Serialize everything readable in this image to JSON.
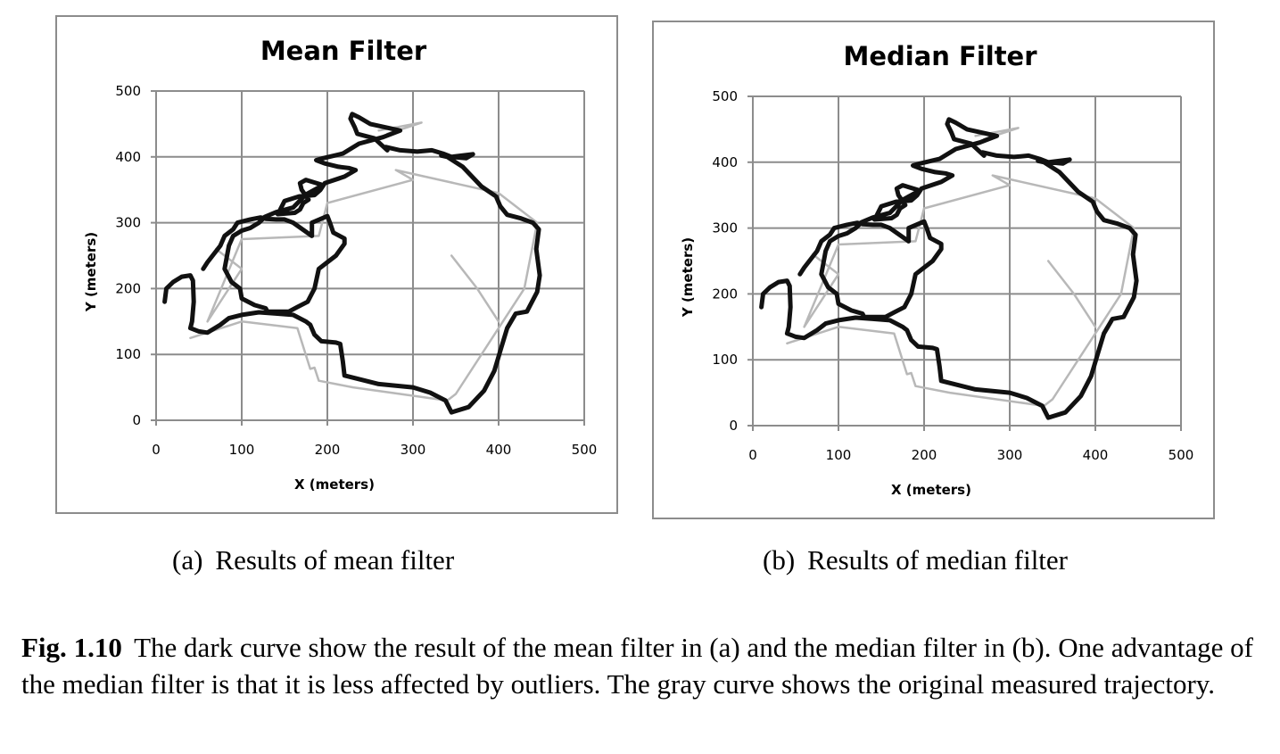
{
  "figure": {
    "label": "Fig. 1.10",
    "caption": "The dark curve show the result of the mean filter in (a) and the median filter in (b). One advantage of the median filter is that it is less affected by outliers. The gray curve shows the original measured trajectory."
  },
  "subfigures": [
    {
      "tag": "(a)",
      "caption": "Results of mean filter"
    },
    {
      "tag": "(b)",
      "caption": "Results of median filter"
    }
  ],
  "colors": {
    "filtered": "#111111",
    "original": "#b8b8b8",
    "grid": "#8c8c8c"
  },
  "chart_data": [
    {
      "type": "line",
      "title": "Mean Filter",
      "xlabel": "X (meters)",
      "ylabel": "Y (meters)",
      "xlim": [
        0,
        500
      ],
      "ylim": [
        0,
        500
      ],
      "xticks": [
        "0",
        "100",
        "200",
        "300",
        "400",
        "500"
      ],
      "yticks": [
        "0",
        "100",
        "200",
        "300",
        "400",
        "500"
      ],
      "grid": true,
      "series": [
        {
          "role": "original",
          "x": [
            70,
            100,
            60,
            100,
            190,
            200,
            300,
            280,
            400,
            445,
            430,
            350,
            340,
            230,
            190,
            185,
            180,
            165,
            100,
            40
          ],
          "y": [
            260,
            230,
            150,
            275,
            280,
            330,
            365,
            380,
            345,
            300,
            200,
            40,
            30,
            50,
            60,
            80,
            78,
            140,
            150,
            125
          ]
        },
        {
          "role": "original",
          "x": [
            345,
            375,
            400
          ],
          "y": [
            250,
            200,
            150
          ]
        },
        {
          "role": "original",
          "x": [
            260,
            310,
            270
          ],
          "y": [
            440,
            452,
            435
          ]
        },
        {
          "role": "filtered",
          "x": [
            10,
            12,
            20,
            30,
            40,
            43,
            44,
            42,
            40,
            50,
            60,
            75,
            85,
            100,
            120,
            140,
            160,
            175,
            180,
            185,
            193,
            210,
            215,
            218,
            220,
            260,
            300,
            320,
            338,
            345,
            365,
            383,
            395,
            403,
            410,
            420,
            433,
            445,
            448,
            444,
            447,
            440,
            425,
            410,
            402,
            397,
            380,
            358,
            340,
            333,
            345,
            370,
            362,
            345,
            335,
            322,
            305,
            285,
            268,
            270,
            255,
            235,
            232,
            227,
            229,
            237,
            250,
            285,
            265,
            237,
            218,
            195,
            187,
            197,
            213,
            225,
            233,
            220,
            197,
            192,
            185,
            167,
            150,
            145,
            142,
            162,
            168,
            172,
            178,
            170,
            168,
            175,
            195,
            175,
            160,
            140,
            127,
            125,
            120,
            110,
            100,
            90,
            85,
            80,
            88,
            98,
            100,
            115,
            128,
            130,
            155,
            165,
            177,
            185,
            190,
            200,
            210,
            220,
            220,
            220,
            207,
            203,
            200,
            182,
            182,
            160,
            150,
            140,
            128,
            122,
            110,
            95,
            90,
            80,
            75,
            60,
            55
          ],
          "y": [
            180,
            200,
            210,
            218,
            220,
            212,
            180,
            150,
            140,
            135,
            133,
            145,
            155,
            160,
            164,
            162,
            160,
            150,
            145,
            130,
            120,
            118,
            116,
            90,
            68,
            55,
            50,
            42,
            30,
            12,
            20,
            45,
            75,
            110,
            140,
            162,
            165,
            195,
            220,
            260,
            290,
            300,
            307,
            312,
            325,
            340,
            355,
            385,
            400,
            402,
            400,
            404,
            398,
            400,
            405,
            410,
            408,
            410,
            415,
            410,
            428,
            435,
            445,
            458,
            465,
            460,
            450,
            440,
            430,
            420,
            405,
            398,
            395,
            390,
            385,
            383,
            380,
            370,
            360,
            350,
            342,
            340,
            333,
            320,
            313,
            315,
            320,
            330,
            335,
            350,
            360,
            365,
            357,
            343,
            323,
            316,
            309,
            306,
            300,
            292,
            288,
            280,
            265,
            230,
            210,
            200,
            185,
            175,
            170,
            165,
            165,
            172,
            180,
            200,
            230,
            240,
            250,
            268,
            273,
            276,
            285,
            300,
            310,
            300,
            280,
            300,
            305,
            305,
            306,
            308,
            305,
            300,
            290,
            280,
            265,
            240,
            230
          ]
        }
      ]
    },
    {
      "type": "line",
      "title": "Median Filter",
      "xlabel": "X (meters)",
      "ylabel": "Y (meters)",
      "xlim": [
        0,
        500
      ],
      "ylim": [
        0,
        500
      ],
      "xticks": [
        "0",
        "100",
        "200",
        "300",
        "400",
        "500"
      ],
      "yticks": [
        "0",
        "100",
        "200",
        "300",
        "400",
        "500"
      ],
      "grid": true,
      "series": [
        {
          "role": "original",
          "x": [
            70,
            100,
            60,
            100,
            190,
            200,
            300,
            280,
            400,
            445,
            430,
            350,
            340,
            230,
            190,
            185,
            180,
            165,
            100,
            40
          ],
          "y": [
            260,
            230,
            150,
            275,
            280,
            330,
            365,
            380,
            345,
            300,
            200,
            40,
            30,
            50,
            60,
            80,
            78,
            140,
            150,
            125
          ]
        },
        {
          "role": "original",
          "x": [
            345,
            375,
            400
          ],
          "y": [
            250,
            200,
            150
          ]
        },
        {
          "role": "original",
          "x": [
            260,
            310,
            270
          ],
          "y": [
            440,
            452,
            435
          ]
        },
        {
          "role": "filtered",
          "x": [
            10,
            12,
            20,
            30,
            40,
            43,
            44,
            42,
            40,
            50,
            60,
            75,
            85,
            100,
            120,
            140,
            160,
            175,
            180,
            185,
            193,
            210,
            215,
            218,
            220,
            260,
            300,
            320,
            338,
            345,
            365,
            383,
            395,
            403,
            410,
            420,
            433,
            445,
            448,
            444,
            447,
            440,
            425,
            410,
            402,
            397,
            380,
            358,
            340,
            333,
            345,
            370,
            362,
            345,
            335,
            322,
            305,
            285,
            268,
            270,
            255,
            235,
            232,
            227,
            229,
            237,
            250,
            285,
            265,
            237,
            218,
            195,
            187,
            197,
            213,
            225,
            233,
            220,
            197,
            192,
            185,
            167,
            150,
            145,
            142,
            162,
            168,
            172,
            178,
            170,
            168,
            175,
            195,
            175,
            160,
            140,
            127,
            125,
            120,
            110,
            100,
            90,
            85,
            80,
            88,
            98,
            100,
            115,
            128,
            130,
            155,
            165,
            177,
            185,
            190,
            200,
            210,
            220,
            220,
            220,
            207,
            203,
            200,
            182,
            182,
            160,
            150,
            140,
            128,
            122,
            110,
            95,
            90,
            80,
            75,
            60,
            55
          ],
          "y": [
            180,
            200,
            210,
            218,
            220,
            212,
            180,
            150,
            140,
            135,
            133,
            145,
            155,
            160,
            164,
            162,
            160,
            150,
            145,
            130,
            120,
            118,
            116,
            90,
            68,
            55,
            50,
            42,
            30,
            12,
            20,
            45,
            75,
            110,
            140,
            162,
            165,
            195,
            220,
            260,
            290,
            300,
            307,
            312,
            325,
            340,
            355,
            385,
            400,
            402,
            400,
            404,
            398,
            400,
            405,
            410,
            408,
            410,
            415,
            410,
            428,
            435,
            445,
            458,
            465,
            460,
            450,
            440,
            430,
            420,
            405,
            398,
            395,
            390,
            385,
            383,
            380,
            370,
            360,
            350,
            342,
            340,
            333,
            320,
            313,
            315,
            320,
            330,
            335,
            350,
            360,
            365,
            357,
            343,
            323,
            316,
            309,
            306,
            300,
            292,
            288,
            280,
            265,
            230,
            210,
            200,
            185,
            175,
            170,
            165,
            165,
            172,
            180,
            200,
            230,
            240,
            250,
            268,
            273,
            276,
            285,
            300,
            310,
            300,
            280,
            300,
            305,
            305,
            306,
            308,
            305,
            300,
            290,
            280,
            265,
            240,
            230
          ]
        }
      ]
    }
  ]
}
